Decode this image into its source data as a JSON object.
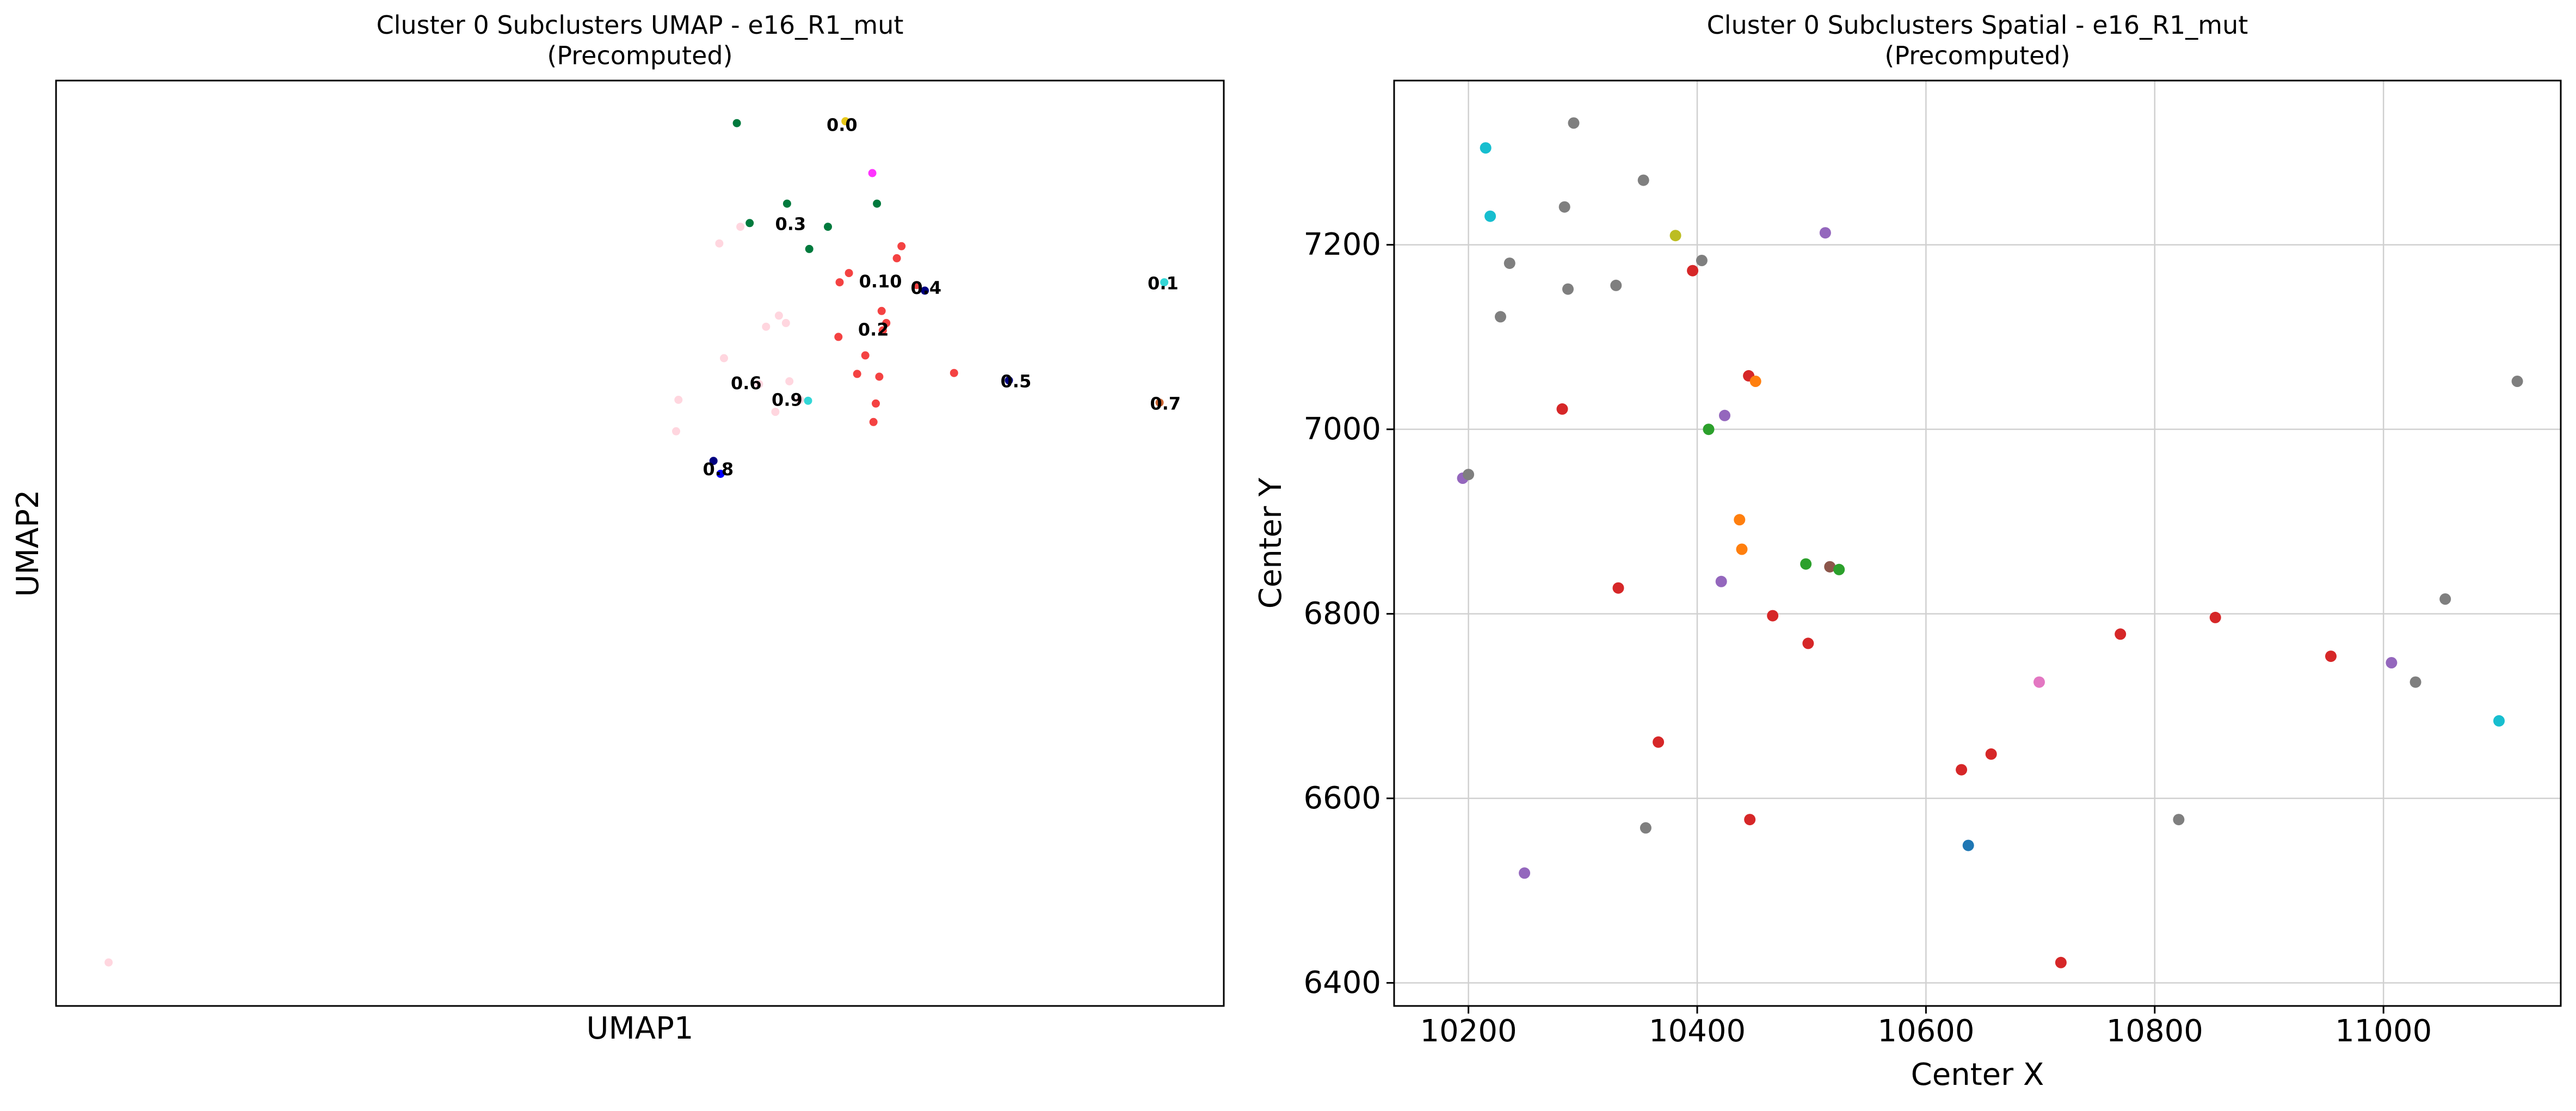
{
  "chart_data": [
    {
      "type": "scatter",
      "title": "Cluster 0 Subclusters UMAP - e16_R1_mut",
      "subtitle": "(Precomputed)",
      "xlabel": "UMAP1",
      "ylabel": "UMAP2",
      "xlim": [
        0,
        100
      ],
      "ylim": [
        0,
        100
      ],
      "grid": false,
      "x_ticks": [],
      "y_ticks": [],
      "annotations": [
        {
          "text": "0.0",
          "x": 67.3,
          "y": 95.2
        },
        {
          "text": "0.3",
          "x": 62.9,
          "y": 84.5
        },
        {
          "text": "0.10",
          "x": 70.6,
          "y": 78.3
        },
        {
          "text": "0.4",
          "x": 74.5,
          "y": 77.6
        },
        {
          "text": "0.1",
          "x": 94.8,
          "y": 78.1
        },
        {
          "text": "0.2",
          "x": 70.0,
          "y": 73.1
        },
        {
          "text": "0.5",
          "x": 82.2,
          "y": 67.5
        },
        {
          "text": "0.6",
          "x": 59.1,
          "y": 67.3
        },
        {
          "text": "0.9",
          "x": 62.6,
          "y": 65.5
        },
        {
          "text": "0.7",
          "x": 95.0,
          "y": 65.1
        },
        {
          "text": "0.8",
          "x": 56.7,
          "y": 58.0
        }
      ],
      "points": [
        {
          "x": 58.3,
          "y": 95.4,
          "color": "#007a3d"
        },
        {
          "x": 67.6,
          "y": 95.6,
          "color": "#e8c81a"
        },
        {
          "x": 69.9,
          "y": 90.0,
          "color": "#ff33ff"
        },
        {
          "x": 62.6,
          "y": 86.7,
          "color": "#007a3d"
        },
        {
          "x": 70.3,
          "y": 86.7,
          "color": "#007a3d"
        },
        {
          "x": 59.4,
          "y": 84.6,
          "color": "#007a3d"
        },
        {
          "x": 66.1,
          "y": 84.2,
          "color": "#007a3d"
        },
        {
          "x": 64.5,
          "y": 81.8,
          "color": "#007a3d"
        },
        {
          "x": 58.6,
          "y": 84.2,
          "color": "#ffd6df"
        },
        {
          "x": 56.8,
          "y": 82.4,
          "color": "#ffd6df"
        },
        {
          "x": 72.4,
          "y": 82.1,
          "color": "#f44242"
        },
        {
          "x": 72.0,
          "y": 80.8,
          "color": "#f44242"
        },
        {
          "x": 67.9,
          "y": 79.2,
          "color": "#f44242"
        },
        {
          "x": 67.1,
          "y": 78.2,
          "color": "#f44242"
        },
        {
          "x": 73.7,
          "y": 77.9,
          "color": "#f44242"
        },
        {
          "x": 74.4,
          "y": 77.3,
          "color": "#000080"
        },
        {
          "x": 70.7,
          "y": 75.1,
          "color": "#f44242"
        },
        {
          "x": 61.9,
          "y": 74.6,
          "color": "#ffd6df"
        },
        {
          "x": 62.5,
          "y": 73.8,
          "color": "#ffd6df"
        },
        {
          "x": 60.8,
          "y": 73.4,
          "color": "#ffd6df"
        },
        {
          "x": 71.1,
          "y": 73.8,
          "color": "#f44242"
        },
        {
          "x": 70.8,
          "y": 73.0,
          "color": "#f44242"
        },
        {
          "x": 67.0,
          "y": 72.3,
          "color": "#f44242"
        },
        {
          "x": 69.3,
          "y": 70.3,
          "color": "#f44242"
        },
        {
          "x": 57.2,
          "y": 70.0,
          "color": "#ffd6df"
        },
        {
          "x": 68.6,
          "y": 68.3,
          "color": "#f44242"
        },
        {
          "x": 70.5,
          "y": 68.0,
          "color": "#f44242"
        },
        {
          "x": 76.9,
          "y": 68.4,
          "color": "#f44242"
        },
        {
          "x": 81.6,
          "y": 67.6,
          "color": "#000080"
        },
        {
          "x": 60.2,
          "y": 67.2,
          "color": "#ffd6df"
        },
        {
          "x": 62.8,
          "y": 67.5,
          "color": "#ffd6df"
        },
        {
          "x": 63.7,
          "y": 65.5,
          "color": "#ffd6df"
        },
        {
          "x": 64.4,
          "y": 65.4,
          "color": "#33d6d6"
        },
        {
          "x": 61.6,
          "y": 64.2,
          "color": "#ffd6df"
        },
        {
          "x": 53.3,
          "y": 65.5,
          "color": "#ffd6df"
        },
        {
          "x": 70.2,
          "y": 65.1,
          "color": "#f44242"
        },
        {
          "x": 70.0,
          "y": 63.1,
          "color": "#f44242"
        },
        {
          "x": 53.1,
          "y": 62.1,
          "color": "#ffd6df"
        },
        {
          "x": 94.5,
          "y": 65.2,
          "color": "#cc6633"
        },
        {
          "x": 94.9,
          "y": 78.2,
          "color": "#33d6d6"
        },
        {
          "x": 56.3,
          "y": 58.9,
          "color": "#000080"
        },
        {
          "x": 56.9,
          "y": 57.5,
          "color": "#0000ff"
        },
        {
          "x": 4.5,
          "y": 4.7,
          "color": "#ffd6df"
        }
      ]
    },
    {
      "type": "scatter",
      "title": "Cluster 0 Subclusters Spatial - e16_R1_mut",
      "subtitle": "(Precomputed)",
      "xlabel": "Center X",
      "ylabel": "Center Y",
      "xlim": [
        10135,
        11155
      ],
      "ylim": [
        6375,
        7378
      ],
      "grid": true,
      "x_ticks": [
        "10200",
        "10400",
        "10600",
        "10800",
        "11000"
      ],
      "y_ticks": [
        "6400",
        "6600",
        "6800",
        "7000",
        "7200"
      ],
      "points": [
        {
          "x": 10215,
          "y": 7305,
          "color": "#17becf"
        },
        {
          "x": 10292,
          "y": 7332,
          "color": "#7f7f7f"
        },
        {
          "x": 10353,
          "y": 7270,
          "color": "#7f7f7f"
        },
        {
          "x": 10219,
          "y": 7231,
          "color": "#17becf"
        },
        {
          "x": 10284,
          "y": 7241,
          "color": "#7f7f7f"
        },
        {
          "x": 10381,
          "y": 7210,
          "color": "#bcbd22"
        },
        {
          "x": 10512,
          "y": 7213,
          "color": "#9467bd"
        },
        {
          "x": 10236,
          "y": 7180,
          "color": "#7f7f7f"
        },
        {
          "x": 10404,
          "y": 7183,
          "color": "#7f7f7f"
        },
        {
          "x": 10396,
          "y": 7172,
          "color": "#d62728"
        },
        {
          "x": 10287,
          "y": 7152,
          "color": "#7f7f7f"
        },
        {
          "x": 10329,
          "y": 7156,
          "color": "#7f7f7f"
        },
        {
          "x": 10228,
          "y": 7122,
          "color": "#7f7f7f"
        },
        {
          "x": 10445,
          "y": 7058,
          "color": "#d62728"
        },
        {
          "x": 10451,
          "y": 7052,
          "color": "#ff7f0e"
        },
        {
          "x": 11117,
          "y": 7052,
          "color": "#7f7f7f"
        },
        {
          "x": 10282,
          "y": 7022,
          "color": "#d62728"
        },
        {
          "x": 10424,
          "y": 7015,
          "color": "#9467bd"
        },
        {
          "x": 10410,
          "y": 7000,
          "color": "#2ca02c"
        },
        {
          "x": 10195,
          "y": 6947,
          "color": "#9467bd"
        },
        {
          "x": 10200,
          "y": 6951,
          "color": "#7f7f7f"
        },
        {
          "x": 10437,
          "y": 6902,
          "color": "#ff7f0e"
        },
        {
          "x": 10439,
          "y": 6870,
          "color": "#ff7f0e"
        },
        {
          "x": 10495,
          "y": 6854,
          "color": "#2ca02c"
        },
        {
          "x": 10516,
          "y": 6851,
          "color": "#8c564b"
        },
        {
          "x": 10524,
          "y": 6848,
          "color": "#2ca02c"
        },
        {
          "x": 10421,
          "y": 6835,
          "color": "#9467bd"
        },
        {
          "x": 10331,
          "y": 6828,
          "color": "#d62728"
        },
        {
          "x": 10466,
          "y": 6798,
          "color": "#d62728"
        },
        {
          "x": 10853,
          "y": 6796,
          "color": "#d62728"
        },
        {
          "x": 10770,
          "y": 6778,
          "color": "#d62728"
        },
        {
          "x": 10497,
          "y": 6768,
          "color": "#d62728"
        },
        {
          "x": 10954,
          "y": 6754,
          "color": "#d62728"
        },
        {
          "x": 11007,
          "y": 6747,
          "color": "#9467bd"
        },
        {
          "x": 10699,
          "y": 6726,
          "color": "#e377c2"
        },
        {
          "x": 11028,
          "y": 6726,
          "color": "#7f7f7f"
        },
        {
          "x": 11054,
          "y": 6816,
          "color": "#7f7f7f"
        },
        {
          "x": 11101,
          "y": 6684,
          "color": "#17becf"
        },
        {
          "x": 10366,
          "y": 6661,
          "color": "#d62728"
        },
        {
          "x": 10657,
          "y": 6648,
          "color": "#d62728"
        },
        {
          "x": 10631,
          "y": 6631,
          "color": "#d62728"
        },
        {
          "x": 10446,
          "y": 6577,
          "color": "#d62728"
        },
        {
          "x": 10821,
          "y": 6577,
          "color": "#7f7f7f"
        },
        {
          "x": 10355,
          "y": 6568,
          "color": "#7f7f7f"
        },
        {
          "x": 10637,
          "y": 6549,
          "color": "#1f77b4"
        },
        {
          "x": 10249,
          "y": 6519,
          "color": "#9467bd"
        },
        {
          "x": 10718,
          "y": 6422,
          "color": "#d62728"
        }
      ]
    }
  ]
}
